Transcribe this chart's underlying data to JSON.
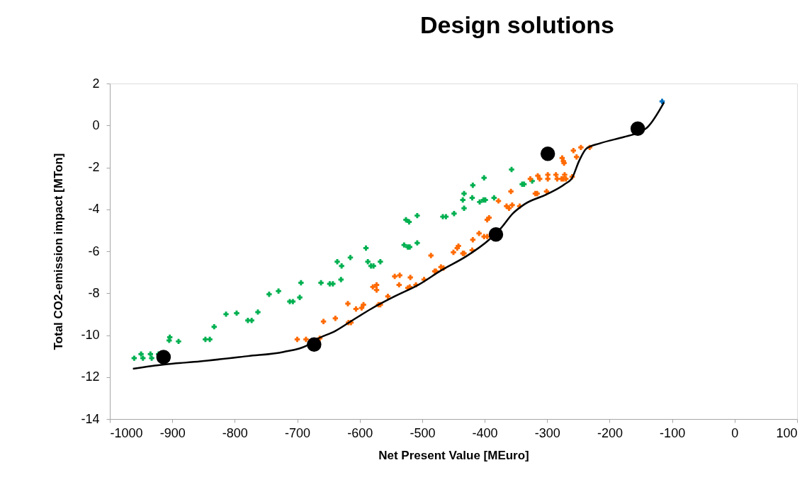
{
  "chart_data": {
    "type": "scatter",
    "title": "Design solutions",
    "xlabel": "Net Present Value [MEuro]",
    "ylabel": "Total CO2-emission impact [MTon]",
    "xlim": [
      -1000,
      100
    ],
    "xticks": [
      -1000,
      -900,
      -800,
      -700,
      -600,
      -500,
      -400,
      -300,
      -200,
      -100,
      0,
      100
    ],
    "ylim": [
      -14,
      2
    ],
    "yticks": [
      -14,
      -12,
      -10,
      -8,
      -6,
      -4,
      -2,
      0,
      2
    ],
    "series": [
      {
        "type": "scatter",
        "marker": "cross",
        "color": "#00b050",
        "x": [
          -961,
          -947,
          -933,
          -950,
          -935,
          -922,
          -904,
          -905,
          -890,
          -847,
          -840,
          -833,
          -814,
          -797,
          -779,
          -773,
          -763,
          -745,
          -730,
          -712,
          -707,
          -696,
          -694,
          -662,
          -648,
          -643,
          -636,
          -630,
          -629,
          -615,
          -590,
          -587,
          -582,
          -578,
          -567,
          -529,
          -523,
          -520,
          -508,
          -526,
          -521,
          -508,
          -467,
          -462,
          -449,
          -433,
          -435,
          -433,
          -420,
          -419,
          -401,
          -408,
          -402,
          -399,
          -385,
          -357,
          -340,
          -337,
          -324
        ],
        "values": [
          -11.1,
          -11.1,
          -11.1,
          -10.9,
          -10.9,
          -10.9,
          -10.1,
          -10.25,
          -10.3,
          -10.2,
          -10.2,
          -9.6,
          -9.0,
          -8.95,
          -9.3,
          -9.3,
          -8.9,
          -8.05,
          -7.9,
          -8.4,
          -8.4,
          -8.2,
          -7.5,
          -7.5,
          -7.55,
          -7.55,
          -6.5,
          -7.35,
          -6.7,
          -6.3,
          -5.85,
          -6.5,
          -6.7,
          -6.7,
          -6.5,
          -5.7,
          -5.8,
          -5.8,
          -5.6,
          -4.5,
          -4.6,
          -4.3,
          -4.35,
          -4.35,
          -4.2,
          -3.95,
          -3.55,
          -3.25,
          -3.45,
          -2.85,
          -2.5,
          -3.65,
          -3.55,
          -3.55,
          -3.45,
          -2.1,
          -2.8,
          -2.8,
          -2.65
        ]
      },
      {
        "type": "scatter",
        "marker": "cross",
        "color": "#ff6a00",
        "x": [
          -700,
          -686,
          -664,
          -658,
          -639,
          -618,
          -614,
          -619,
          -606,
          -597,
          -594,
          -570,
          -567,
          -555,
          -579,
          -573,
          -573,
          -544,
          -536,
          -537,
          -519,
          -523,
          -520,
          -510,
          -497,
          -480,
          -478,
          -470,
          -466,
          -486,
          -450,
          -442,
          -444,
          -435,
          -433,
          -420,
          -419,
          -409,
          -401,
          -396,
          -396,
          -393,
          -378,
          -365,
          -356,
          -361,
          -344,
          -358,
          -327,
          -315,
          -312,
          -319,
          -316,
          -301,
          -299,
          -299,
          -286,
          -284,
          -277,
          -274,
          -272,
          -270,
          -260,
          -276,
          -274,
          -273,
          -258,
          -253,
          -246,
          -232
        ],
        "values": [
          -10.2,
          -10.2,
          -10.15,
          -9.35,
          -9.2,
          -9.4,
          -9.4,
          -8.5,
          -8.75,
          -8.7,
          -8.55,
          -8.55,
          -8.55,
          -8.15,
          -7.7,
          -7.85,
          -7.6,
          -7.2,
          -7.15,
          -7.6,
          -7.25,
          -7.75,
          -7.7,
          -7.6,
          -7.35,
          -6.95,
          -6.95,
          -6.75,
          -6.8,
          -6.2,
          -6.05,
          -5.75,
          -5.85,
          -6.1,
          -6.1,
          -5.95,
          -5.45,
          -5.15,
          -5.3,
          -5.3,
          -4.5,
          -4.4,
          -3.6,
          -3.85,
          -3.8,
          -3.95,
          -3.85,
          -3.15,
          -2.55,
          -2.4,
          -2.55,
          -3.25,
          -3.25,
          -3.15,
          -2.35,
          -2.55,
          -2.35,
          -2.55,
          -2.55,
          -2.55,
          -2.35,
          -2.55,
          -2.45,
          -1.55,
          -1.7,
          -1.8,
          -1.2,
          -1.5,
          -1.05,
          -1.05
        ]
      },
      {
        "type": "scatter",
        "marker": "cross",
        "color": "#0070c0",
        "x": [
          -116
        ],
        "values": [
          1.15
        ]
      },
      {
        "type": "line",
        "marker": "none",
        "color": "#000000",
        "line_style": "solid",
        "x": [
          -963,
          -913,
          -855,
          -779,
          -722,
          -685,
          -669,
          -639,
          -612,
          -582,
          -544,
          -506,
          -469,
          -430,
          -393,
          -374,
          -355,
          -336,
          -302,
          -272,
          -260,
          -249,
          -237,
          -215,
          -177,
          -155,
          -140,
          -113
        ],
        "values": [
          -11.6,
          -11.4,
          -11.25,
          -11.0,
          -10.8,
          -10.5,
          -10.2,
          -9.8,
          -9.3,
          -8.75,
          -8.15,
          -7.6,
          -6.9,
          -6.25,
          -5.45,
          -4.9,
          -4.2,
          -3.75,
          -3.3,
          -2.8,
          -2.5,
          -1.7,
          -1.1,
          -0.85,
          -0.55,
          -0.35,
          -0.1,
          1.1
        ]
      },
      {
        "type": "scatter",
        "marker": "circle",
        "color": "#000000",
        "x": [
          -914,
          -673,
          -382,
          -299,
          -155
        ],
        "values": [
          -11.05,
          -10.45,
          -5.2,
          -1.35,
          -0.15
        ]
      }
    ]
  }
}
